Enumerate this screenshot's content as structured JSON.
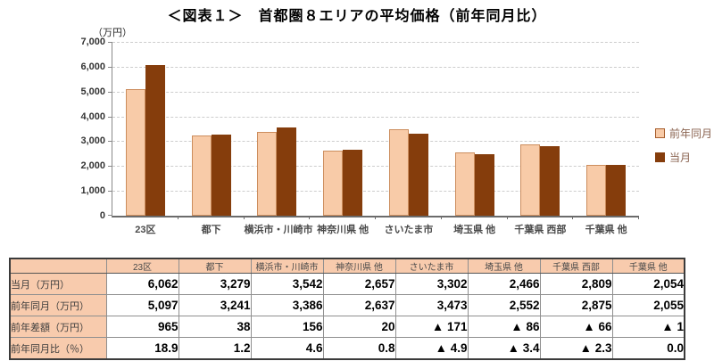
{
  "chart_data": {
    "type": "bar",
    "title": "＜図表１＞　首都圏８エリアの平均価格（前年同月比）",
    "unit_label": "（万円）",
    "categories": [
      "23区",
      "都下",
      "横浜市・川崎市",
      "神奈川県 他",
      "さいたま市",
      "埼玉県 他",
      "千葉県 西部",
      "千葉県 他"
    ],
    "series": [
      {
        "name": "前年同月",
        "color": "#f8cba8",
        "values": [
          5097,
          3241,
          3386,
          2637,
          3473,
          2552,
          2875,
          2055
        ]
      },
      {
        "name": "当月",
        "color": "#853d0c",
        "values": [
          6062,
          3279,
          3542,
          2657,
          3302,
          2466,
          2809,
          2054
        ]
      }
    ],
    "ylim": [
      0,
      7000
    ],
    "ytick_step": 1000,
    "ytick_labels": [
      "0",
      "1,000",
      "2,000",
      "3,000",
      "4,000",
      "5,000",
      "6,000",
      "7,000"
    ],
    "grid": "horizontal-dashed",
    "legend_position": "right"
  },
  "table": {
    "column_headers": [
      "",
      "23区",
      "都下",
      "横浜市・川崎市",
      "神奈川県 他",
      "さいたま市",
      "埼玉県 他",
      "千葉県 西部",
      "千葉県 他"
    ],
    "rows": [
      {
        "label": "当月（万円）",
        "values": [
          "6,062",
          "3,279",
          "3,542",
          "2,657",
          "3,302",
          "2,466",
          "2,809",
          "2,054"
        ]
      },
      {
        "label": "前年同月（万円）",
        "values": [
          "5,097",
          "3,241",
          "3,386",
          "2,637",
          "3,473",
          "2,552",
          "2,875",
          "2,055"
        ]
      },
      {
        "label": "前年差額（万円）",
        "values": [
          "965",
          "38",
          "156",
          "20",
          "▲ 171",
          "▲ 86",
          "▲ 66",
          "▲ 1"
        ]
      },
      {
        "label": "前年同月比（％）",
        "values": [
          "18.9",
          "1.2",
          "4.6",
          "0.8",
          "▲ 4.9",
          "▲ 3.4",
          "▲ 2.3",
          "0.0"
        ]
      }
    ]
  },
  "colors": {
    "series_prev_year": "#f8cba8",
    "series_prev_year_border": "#cc8d5d",
    "series_current": "#853d0c",
    "table_header_fill": "#f8cbad",
    "gridline": "#cdcdcd",
    "legend_text": "#8a6350"
  }
}
